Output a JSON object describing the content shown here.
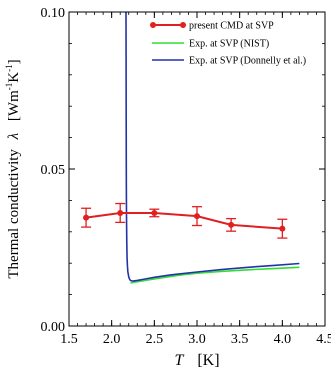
{
  "chart_data": {
    "type": "line",
    "title": "",
    "xlabel": {
      "symbol": "T",
      "unit": "[K]"
    },
    "ylabel": {
      "text": "Thermal conductivity",
      "symbol": "λ",
      "unit": "[Wm",
      "exp1": "-1",
      "mid": "K",
      "exp2": "-1",
      "close": "]"
    },
    "xlim": [
      1.5,
      4.5
    ],
    "ylim": [
      0.0,
      0.1
    ],
    "xticks": [
      1.5,
      2.0,
      2.5,
      3.0,
      3.5,
      4.0,
      4.5
    ],
    "xtick_labels": [
      "1.5",
      "2.0",
      "2.5",
      "3.0",
      "3.5",
      "4.0",
      "4.5"
    ],
    "yticks": [
      0.0,
      0.05,
      0.1
    ],
    "ytick_labels": [
      "0.00",
      "0.05",
      "0.10"
    ],
    "grid": false,
    "legend_position": "top-right",
    "series": [
      {
        "name": "present CMD at SVP",
        "kind": "errorbar",
        "color": "#e02020",
        "x": [
          1.7,
          2.1,
          2.5,
          3.0,
          3.4,
          4.0
        ],
        "y": [
          0.0345,
          0.036,
          0.036,
          0.035,
          0.0322,
          0.031
        ],
        "err": [
          0.003,
          0.003,
          0.0012,
          0.003,
          0.002,
          0.003
        ]
      },
      {
        "name": "Exp. at SVP (NIST)",
        "kind": "line",
        "color": "#33dd33",
        "x": [
          2.22,
          2.3,
          2.5,
          2.8,
          3.0,
          3.3,
          3.6,
          3.9,
          4.2
        ],
        "y": [
          0.0137,
          0.0141,
          0.015,
          0.0162,
          0.0168,
          0.0174,
          0.0179,
          0.0183,
          0.0187
        ]
      },
      {
        "name": "Exp. at SVP (Donnelly et al.)",
        "kind": "line",
        "color": "#2233aa",
        "x": [
          2.168,
          2.169,
          2.17,
          2.171,
          2.172,
          2.174,
          2.177,
          2.18,
          2.185,
          2.19,
          2.2,
          2.21,
          2.22,
          2.25,
          2.3,
          2.4,
          2.5,
          2.7,
          3.0,
          3.3,
          3.6,
          3.9,
          4.2
        ],
        "y": [
          0.1,
          0.085,
          0.07,
          0.055,
          0.045,
          0.035,
          0.027,
          0.022,
          0.019,
          0.0172,
          0.0157,
          0.0149,
          0.0145,
          0.0143,
          0.0145,
          0.015,
          0.0155,
          0.0163,
          0.0172,
          0.018,
          0.0187,
          0.0193,
          0.0199
        ]
      }
    ]
  }
}
